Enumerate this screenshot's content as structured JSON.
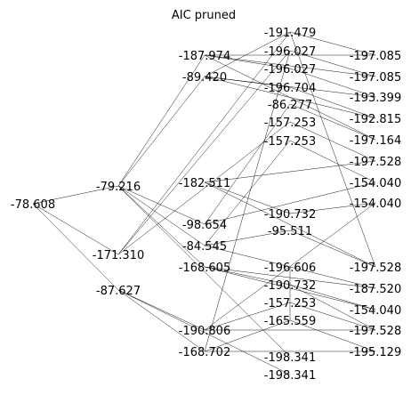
{
  "title": "AIC pruned",
  "colors": {
    "edge": "#000000",
    "text": "#000000",
    "background": "#ffffff"
  },
  "nodes": [
    {
      "id": "n0",
      "label": "-78.608"
    },
    {
      "id": "n1",
      "label": "-79.216"
    },
    {
      "id": "n2",
      "label": "-171.310"
    },
    {
      "id": "n3",
      "label": "-87.627"
    },
    {
      "id": "n4",
      "label": "-187.974"
    },
    {
      "id": "n5",
      "label": "-89.420"
    },
    {
      "id": "n6",
      "label": "-182.511"
    },
    {
      "id": "n7",
      "label": "-98.654"
    },
    {
      "id": "n8",
      "label": "-84.545"
    },
    {
      "id": "n9",
      "label": "-168.605"
    },
    {
      "id": "n10",
      "label": "-190.806"
    },
    {
      "id": "n11",
      "label": "-168.702"
    },
    {
      "id": "n12",
      "label": "-191.479"
    },
    {
      "id": "n13",
      "label": "-196.027"
    },
    {
      "id": "n14",
      "label": "-196.027"
    },
    {
      "id": "n15",
      "label": "-196.704"
    },
    {
      "id": "n16",
      "label": "-86.277"
    },
    {
      "id": "n17",
      "label": "-157.253"
    },
    {
      "id": "n18",
      "label": "-157.253"
    },
    {
      "id": "n19",
      "label": "-190.732"
    },
    {
      "id": "n20",
      "label": "-95.511"
    },
    {
      "id": "n21",
      "label": "-196.606"
    },
    {
      "id": "n22",
      "label": "-190.732"
    },
    {
      "id": "n23",
      "label": "-157.253"
    },
    {
      "id": "n24",
      "label": "-165.559"
    },
    {
      "id": "n25",
      "label": "-198.341"
    },
    {
      "id": "n26",
      "label": "-198.341"
    },
    {
      "id": "n27",
      "label": "-197.085"
    },
    {
      "id": "n28",
      "label": "-197.085"
    },
    {
      "id": "n29",
      "label": "-193.399"
    },
    {
      "id": "n30",
      "label": "-192.815"
    },
    {
      "id": "n31",
      "label": "-197.164"
    },
    {
      "id": "n32",
      "label": "-197.528"
    },
    {
      "id": "n33",
      "label": "-154.040"
    },
    {
      "id": "n34",
      "label": "-154.040"
    },
    {
      "id": "n35",
      "label": "-197.528"
    },
    {
      "id": "n36",
      "label": "-187.520"
    },
    {
      "id": "n37",
      "label": "-154.040"
    },
    {
      "id": "n38",
      "label": "-197.528"
    },
    {
      "id": "n39",
      "label": "-195.129"
    }
  ],
  "edges": [
    [
      "n0",
      "n1"
    ],
    [
      "n0",
      "n2"
    ],
    [
      "n0",
      "n3"
    ],
    [
      "n1",
      "n4"
    ],
    [
      "n1",
      "n5"
    ],
    [
      "n1",
      "n7"
    ],
    [
      "n1",
      "n8"
    ],
    [
      "n1",
      "n9"
    ],
    [
      "n1",
      "n25"
    ],
    [
      "n2",
      "n12"
    ],
    [
      "n2",
      "n13"
    ],
    [
      "n2",
      "n17"
    ],
    [
      "n3",
      "n10"
    ],
    [
      "n3",
      "n11"
    ],
    [
      "n3",
      "n26"
    ],
    [
      "n4",
      "n14"
    ],
    [
      "n4",
      "n27"
    ],
    [
      "n4",
      "n28"
    ],
    [
      "n4",
      "n31"
    ],
    [
      "n5",
      "n12"
    ],
    [
      "n5",
      "n15"
    ],
    [
      "n5",
      "n29"
    ],
    [
      "n5",
      "n30"
    ],
    [
      "n6",
      "n19"
    ],
    [
      "n6",
      "n32"
    ],
    [
      "n6",
      "n35"
    ],
    [
      "n7",
      "n16"
    ],
    [
      "n7",
      "n33"
    ],
    [
      "n8",
      "n20"
    ],
    [
      "n8",
      "n18"
    ],
    [
      "n8",
      "n21"
    ],
    [
      "n9",
      "n22"
    ],
    [
      "n9",
      "n36"
    ],
    [
      "n9",
      "n37"
    ],
    [
      "n10",
      "n23"
    ],
    [
      "n10",
      "n34"
    ],
    [
      "n10",
      "n38"
    ],
    [
      "n11",
      "n24"
    ],
    [
      "n11",
      "n39"
    ],
    [
      "n11",
      "n13"
    ],
    [
      "n12",
      "n27"
    ],
    [
      "n13",
      "n28"
    ],
    [
      "n14",
      "n29"
    ],
    [
      "n15",
      "n30"
    ],
    [
      "n16",
      "n31"
    ],
    [
      "n17",
      "n32"
    ],
    [
      "n18",
      "n33"
    ],
    [
      "n19",
      "n34"
    ],
    [
      "n20",
      "n35"
    ],
    [
      "n21",
      "n36"
    ],
    [
      "n22",
      "n37"
    ],
    [
      "n23",
      "n38"
    ],
    [
      "n24",
      "n39"
    ],
    [
      "n24",
      "n21"
    ],
    [
      "n22",
      "n38"
    ],
    [
      "n12",
      "n35"
    ]
  ]
}
